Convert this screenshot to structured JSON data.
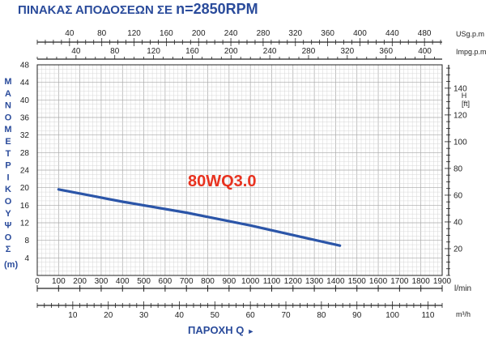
{
  "header": {
    "title_prefix": "ΠΙΝΑΚΑΣ ΑΠΟΔΟΣΕΩΝ ΣΕ ",
    "title_speed": "n=2850RPM"
  },
  "y_title_letters": [
    "Μ",
    "Α",
    "Ν",
    "Ο",
    "Μ",
    "Ε",
    "Τ",
    "Ρ",
    "Ι",
    "Κ",
    "Ο",
    "Υ",
    "Ψ",
    "Ο",
    "Σ"
  ],
  "y_title_unit": "(m)",
  "x_title": "ΠΑΡΟΧΗ Q",
  "x_title_arrow": "►",
  "colors": {
    "curve": "#2b55a8",
    "model_label": "#e8321f",
    "title": "#2a4b9b",
    "grid_major": "#a8a8a8",
    "grid_minor": "#d6d6d6",
    "frame": "#222222"
  },
  "chart_data": {
    "type": "line",
    "model_label": "80WQ3.0",
    "series": [
      {
        "name": "80WQ3.0",
        "x": [
          100,
          400,
          700,
          1000,
          1200,
          1420
        ],
        "y": [
          19.6,
          16.8,
          14.3,
          11.4,
          9.2,
          6.8
        ]
      }
    ],
    "x_primary": {
      "unit": "l/min",
      "min": 0,
      "max": 1900,
      "ticks": [
        0,
        100,
        200,
        300,
        400,
        500,
        600,
        700,
        800,
        900,
        1000,
        1100,
        1200,
        1300,
        1400,
        1500,
        1600,
        1700,
        1800,
        1900
      ]
    },
    "y_primary": {
      "unit": "(m)",
      "min": 0,
      "max": 48,
      "ticks": [
        4,
        8,
        12,
        16,
        20,
        24,
        28,
        32,
        36,
        40,
        44,
        48
      ]
    },
    "x_m3h": {
      "unit": "m³/h",
      "ticks": [
        10,
        20,
        30,
        40,
        50,
        60,
        70,
        80,
        90,
        100,
        110
      ]
    },
    "x_usgpm": {
      "unit": "USg.p.m",
      "ticks": [
        40,
        80,
        120,
        160,
        200,
        240,
        280,
        320,
        360,
        400,
        440,
        480
      ]
    },
    "x_impgpm": {
      "unit": "Impg.p.m",
      "ticks": [
        40,
        80,
        120,
        160,
        200,
        240,
        280,
        320,
        360,
        400
      ]
    },
    "y_ft": {
      "unit_line1": "H",
      "unit_line2": "[ft]",
      "ticks": [
        20,
        40,
        60,
        80,
        100,
        120,
        140
      ]
    },
    "grid": true
  }
}
